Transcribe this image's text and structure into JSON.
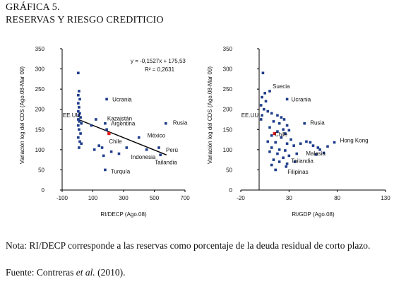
{
  "figure": {
    "title_line1": "GRÁFICA 5.",
    "title_line2": "RESERVAS Y RIESGO CREDITICIO",
    "note": "Nota: RI/DECP corresponde a las reservas como porcentaje de la deuda residual de corto plazo.",
    "source_prefix": "Fuente: Contreras ",
    "source_italic": "et al.",
    "source_suffix": " (2010)."
  },
  "colors": {
    "points": "#1f3d8c",
    "highlight": "#e0181b",
    "line": "#000000",
    "axis": "#000000"
  },
  "chart_data": [
    {
      "type": "scatter",
      "xlabel": "RI/DECP (Ago.08)",
      "ylabel": "Variación log del CDS (Ago.08-Mar 09)",
      "xlim": [
        -100,
        700
      ],
      "ylim": [
        0,
        350
      ],
      "xticks": [
        -100,
        100,
        300,
        500,
        700
      ],
      "yticks": [
        0,
        50,
        100,
        150,
        200,
        250,
        300,
        350
      ],
      "equation": "y = -0,1527x + 175,53",
      "r2": "R² = 0,2631",
      "trendline": {
        "slope": -0.1527,
        "intercept": 175.53,
        "x_range": [
          0,
          580
        ]
      },
      "labeled_points": [
        {
          "label": "Ucrania",
          "x": 190,
          "y": 225
        },
        {
          "label": "Kazajstán",
          "x": 180,
          "y": 165
        },
        {
          "label": "Argentina",
          "x": 190,
          "y": 150
        },
        {
          "label": "EE.UU.",
          "x": 5,
          "y": 175
        },
        {
          "label": "Chile",
          "x": 205,
          "y": 140,
          "highlight": true
        },
        {
          "label": "México",
          "x": 400,
          "y": 130
        },
        {
          "label": "Rusia",
          "x": 575,
          "y": 165
        },
        {
          "label": "Perú",
          "x": 530,
          "y": 105
        },
        {
          "label": "Indonesia",
          "x": 450,
          "y": 100
        },
        {
          "label": "Tailandia",
          "x": 540,
          "y": 87
        },
        {
          "label": "Turquía",
          "x": 180,
          "y": 50
        }
      ],
      "points": [
        {
          "x": 5,
          "y": 290
        },
        {
          "x": 10,
          "y": 245
        },
        {
          "x": 5,
          "y": 235
        },
        {
          "x": 15,
          "y": 225
        },
        {
          "x": 5,
          "y": 215
        },
        {
          "x": 10,
          "y": 205
        },
        {
          "x": 5,
          "y": 195
        },
        {
          "x": 15,
          "y": 190
        },
        {
          "x": 8,
          "y": 185
        },
        {
          "x": 20,
          "y": 180
        },
        {
          "x": 12,
          "y": 170
        },
        {
          "x": 25,
          "y": 165
        },
        {
          "x": 5,
          "y": 160
        },
        {
          "x": 10,
          "y": 150
        },
        {
          "x": 20,
          "y": 140
        },
        {
          "x": 5,
          "y": 130
        },
        {
          "x": 15,
          "y": 120
        },
        {
          "x": 25,
          "y": 115
        },
        {
          "x": 10,
          "y": 105
        },
        {
          "x": 90,
          "y": 160
        },
        {
          "x": 120,
          "y": 175
        },
        {
          "x": 140,
          "y": 110
        },
        {
          "x": 110,
          "y": 100
        },
        {
          "x": 160,
          "y": 105
        },
        {
          "x": 220,
          "y": 95
        },
        {
          "x": 270,
          "y": 90
        },
        {
          "x": 320,
          "y": 105
        },
        {
          "x": 170,
          "y": 85
        }
      ]
    },
    {
      "type": "scatter",
      "xlabel": "RI/GDP (Ago.08)",
      "ylabel": "Variación log del CDS (Ago.08-Mar 09)",
      "xlim": [
        -20,
        130
      ],
      "ylim": [
        0,
        350
      ],
      "xticks": [
        -20,
        30,
        80,
        130
      ],
      "yticks": [
        0,
        50,
        100,
        150,
        200,
        250,
        300,
        350
      ],
      "labeled_points": [
        {
          "label": "Suecia",
          "x": 10,
          "y": 245
        },
        {
          "label": "Ucrania",
          "x": 28,
          "y": 225
        },
        {
          "label": "EE.UU.",
          "x": 1,
          "y": 175
        },
        {
          "label": "Chile",
          "x": 15,
          "y": 140,
          "highlight": true
        },
        {
          "label": "Rusia",
          "x": 46,
          "y": 165
        },
        {
          "label": "Hong Kong",
          "x": 77,
          "y": 118
        },
        {
          "label": "Malasia",
          "x": 60,
          "y": 105
        },
        {
          "label": "Tailandia",
          "x": 38,
          "y": 90
        },
        {
          "label": "Filipinas",
          "x": 27,
          "y": 58
        }
      ],
      "points": [
        {
          "x": 3,
          "y": 290
        },
        {
          "x": 5,
          "y": 240
        },
        {
          "x": 2,
          "y": 230
        },
        {
          "x": 6,
          "y": 220
        },
        {
          "x": 1,
          "y": 210
        },
        {
          "x": 4,
          "y": 200
        },
        {
          "x": 8,
          "y": 195
        },
        {
          "x": 2,
          "y": 185
        },
        {
          "x": 12,
          "y": 190
        },
        {
          "x": 18,
          "y": 185
        },
        {
          "x": 22,
          "y": 180
        },
        {
          "x": 25,
          "y": 175
        },
        {
          "x": 14,
          "y": 170
        },
        {
          "x": 20,
          "y": 165
        },
        {
          "x": 28,
          "y": 160
        },
        {
          "x": 10,
          "y": 155
        },
        {
          "x": 24,
          "y": 150
        },
        {
          "x": 30,
          "y": 148
        },
        {
          "x": 18,
          "y": 145
        },
        {
          "x": 26,
          "y": 140
        },
        {
          "x": 12,
          "y": 135
        },
        {
          "x": 22,
          "y": 130
        },
        {
          "x": 32,
          "y": 125
        },
        {
          "x": 8,
          "y": 120
        },
        {
          "x": 16,
          "y": 118
        },
        {
          "x": 28,
          "y": 115
        },
        {
          "x": 35,
          "y": 110
        },
        {
          "x": 12,
          "y": 105
        },
        {
          "x": 20,
          "y": 100
        },
        {
          "x": 26,
          "y": 98
        },
        {
          "x": 10,
          "y": 95
        },
        {
          "x": 18,
          "y": 90
        },
        {
          "x": 30,
          "y": 85
        },
        {
          "x": 24,
          "y": 80
        },
        {
          "x": 14,
          "y": 75
        },
        {
          "x": 20,
          "y": 70
        },
        {
          "x": 28,
          "y": 65
        },
        {
          "x": 12,
          "y": 62
        },
        {
          "x": 16,
          "y": 50
        },
        {
          "x": 42,
          "y": 115
        },
        {
          "x": 48,
          "y": 120
        },
        {
          "x": 52,
          "y": 118
        },
        {
          "x": 55,
          "y": 110
        },
        {
          "x": 62,
          "y": 100
        },
        {
          "x": 70,
          "y": 108
        },
        {
          "x": 58,
          "y": 88
        },
        {
          "x": 66,
          "y": 92
        },
        {
          "x": 36,
          "y": 70
        }
      ]
    }
  ]
}
